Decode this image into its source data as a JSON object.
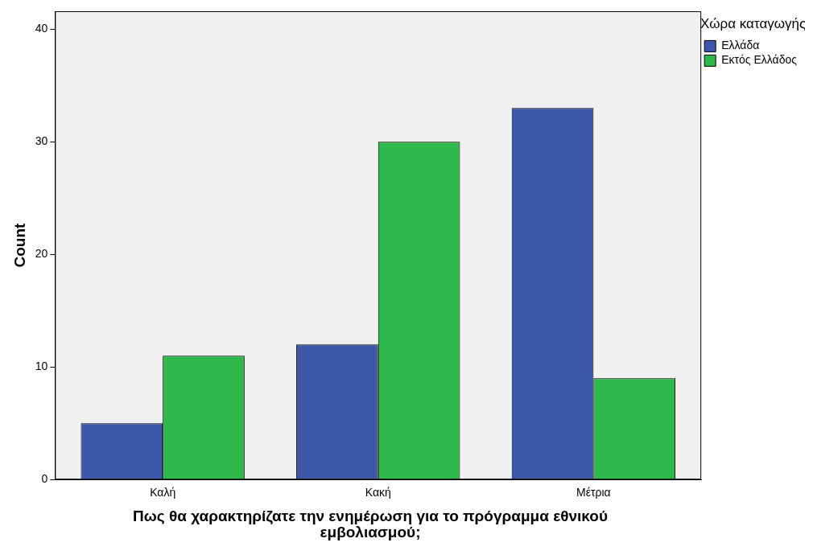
{
  "chart_data": {
    "type": "bar",
    "xlabel": "Πως θα χαρακτηρίζατε την ενημέρωση για το πρόγραμμα εθνικού εμβολιασμού;",
    "ylabel": "Count",
    "legend_title": "Χώρα καταγωγής",
    "categories": [
      "Καλή",
      "Κακή",
      "Μέτρια"
    ],
    "series": [
      {
        "name": "Ελλάδα",
        "color": "#3d56a9",
        "values": [
          5,
          12,
          33
        ]
      },
      {
        "name": "Εκτός Ελλάδος",
        "color": "#2fb84b",
        "values": [
          11,
          30,
          9
        ]
      }
    ],
    "ylim": [
      0,
      41.6
    ],
    "yticks": [
      0,
      10,
      20,
      30,
      40
    ],
    "grid": false,
    "legend": "top right"
  }
}
